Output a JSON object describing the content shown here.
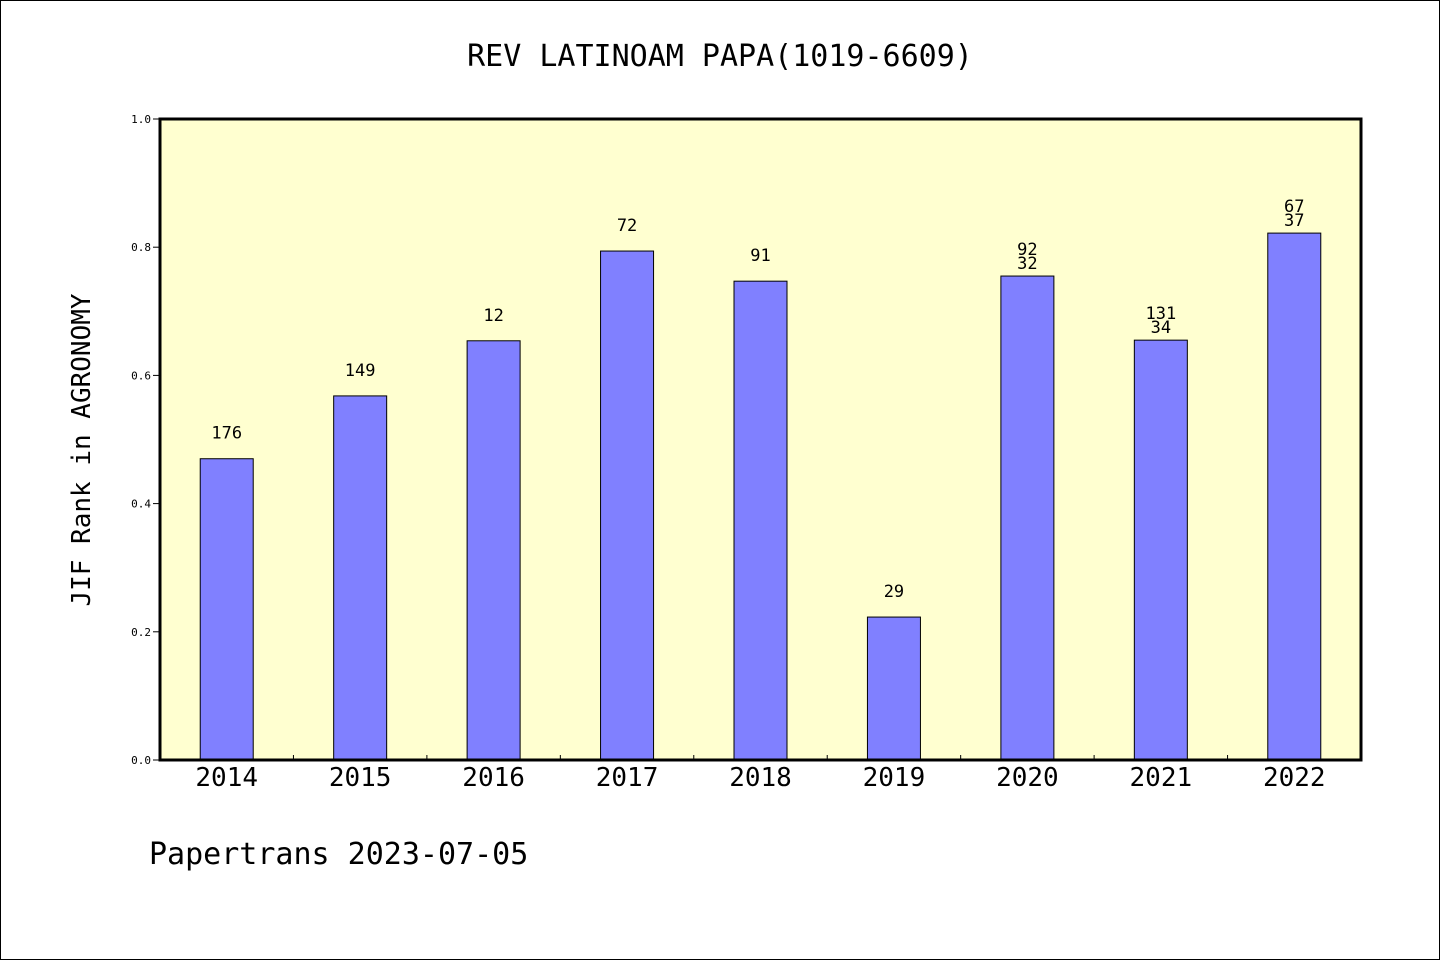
{
  "chart_data": {
    "type": "bar",
    "title": "REV LATINOAM PAPA(1019-6609)",
    "ylabel": "JIF Rank in AGRONOMY",
    "xlabel": "",
    "ylim": [
      0,
      1.0
    ],
    "yticks": [
      "0.0",
      "0.2",
      "0.4",
      "0.6",
      "0.8",
      "1.0"
    ],
    "categories": [
      "2014",
      "2015",
      "2016",
      "2017",
      "2018",
      "2019",
      "2020",
      "2021",
      "2022"
    ],
    "values": [
      0.47,
      0.568,
      0.654,
      0.794,
      0.747,
      0.223,
      0.755,
      0.655,
      0.822
    ],
    "labels": [
      [
        "176"
      ],
      [
        "149"
      ],
      [
        "12"
      ],
      [
        "72"
      ],
      [
        "91"
      ],
      [
        "29"
      ],
      [
        "92",
        "32"
      ],
      [
        "131",
        "34"
      ],
      [
        "67",
        "37"
      ]
    ],
    "grid": false,
    "legend": "none"
  },
  "footer": "Papertrans 2023-07-05",
  "colors": {
    "plot_background": "#ffffd0",
    "bar_fill": "#8080ff",
    "bar_stroke": "#000000",
    "axis": "#000000"
  }
}
